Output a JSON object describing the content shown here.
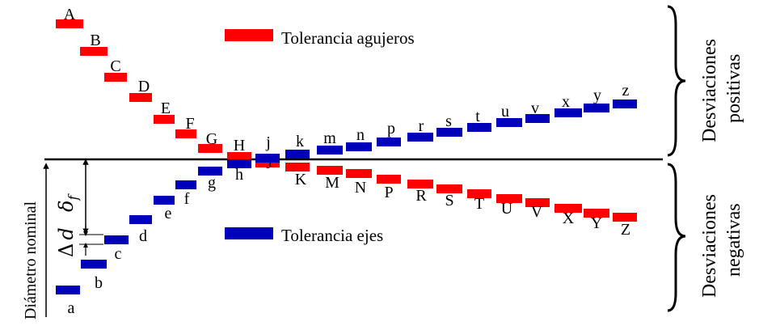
{
  "colors": {
    "hole": "#ff0000",
    "shaft": "#0000bb",
    "line": "#000000"
  },
  "legend": {
    "holes": "Tolerancia agujeros",
    "shafts": "Tolerancia ejes"
  },
  "zones": {
    "positive": [
      "Desviaciones",
      "positivas"
    ],
    "negative": [
      "Desviaciones",
      "negativas"
    ]
  },
  "axis_label": "Diámetro nominal",
  "symbols": {
    "delta_f": "δ",
    "delta_f_sub": "f",
    "delta_d": "Δ",
    "delta_d_var": "d"
  },
  "hole_letters": [
    "A",
    "B",
    "C",
    "D",
    "E",
    "F",
    "G",
    "H",
    "J",
    "K",
    "M",
    "N",
    "P",
    "R",
    "S",
    "T",
    "U",
    "V",
    "X",
    "Y",
    "Z"
  ],
  "shaft_letters": [
    "a",
    "b",
    "c",
    "d",
    "e",
    "f",
    "g",
    "h",
    "j",
    "k",
    "m",
    "n",
    "p",
    "r",
    "s",
    "t",
    "u",
    "v",
    "x",
    "y",
    "z"
  ]
}
